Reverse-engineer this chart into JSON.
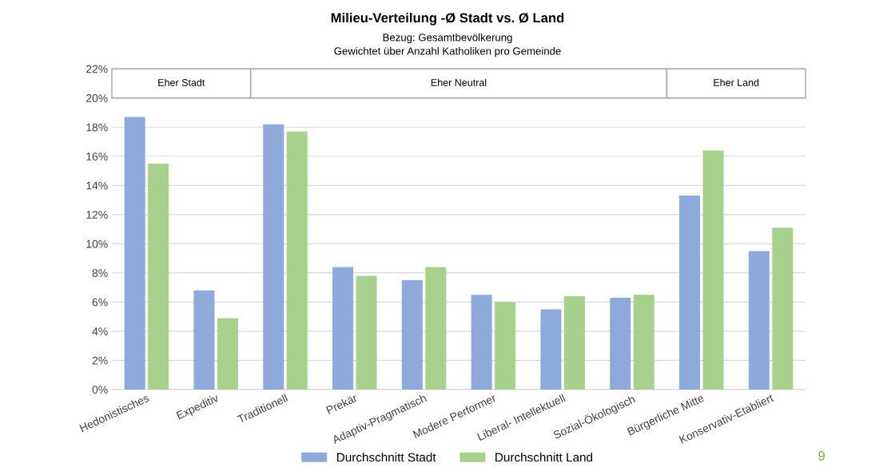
{
  "chart_data": {
    "type": "bar",
    "title": "Milieu-Verteilung -Ø Stadt vs. Ø Land",
    "subtitle": "Bezug: Gesamtbevölkerung\nGewichtet über Anzahl Katholiken pro Gemeinde",
    "categories": [
      "Hedonistisches",
      "Expeditiv",
      "Traditionell",
      "Prekär",
      "Adaptiv-Pragmatisch",
      "Modere Performer",
      "Liberal- Intellektuell",
      "Sozial-Ökologisch",
      "Bürgerliche Mitte",
      "Konservativ-Etabliert"
    ],
    "series": [
      {
        "name": "Durchschnitt Stadt",
        "color": "#8eaadb",
        "values": [
          18.7,
          6.8,
          18.2,
          8.4,
          7.5,
          6.5,
          5.5,
          6.3,
          13.3,
          9.5
        ]
      },
      {
        "name": "Durchschnitt Land",
        "color": "#a9d18e",
        "values": [
          15.5,
          4.9,
          17.7,
          7.8,
          8.4,
          6.0,
          6.4,
          6.5,
          16.4,
          11.1
        ]
      }
    ],
    "ylim": [
      0,
      22
    ],
    "yticks": [
      {
        "value": 0,
        "label": "0%"
      },
      {
        "value": 2,
        "label": "2%"
      },
      {
        "value": 4,
        "label": "4%"
      },
      {
        "value": 6,
        "label": "6%"
      },
      {
        "value": 8,
        "label": "8%"
      },
      {
        "value": 10,
        "label": "10%"
      },
      {
        "value": 12,
        "label": "12%"
      },
      {
        "value": 14,
        "label": "14%"
      },
      {
        "value": 16,
        "label": "16%"
      },
      {
        "value": 18,
        "label": "18%"
      },
      {
        "value": 20,
        "label": "20%"
      },
      {
        "value": 22,
        "label": "22%"
      }
    ],
    "annotations": [
      "Eher Stadt",
      "Eher Neutral",
      "Eher Land",
      "9"
    ],
    "grid": "y",
    "legend": "bottom"
  }
}
